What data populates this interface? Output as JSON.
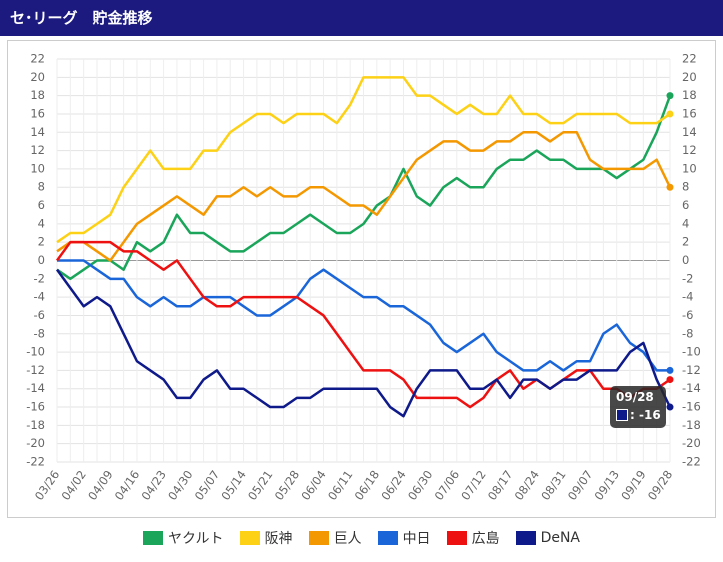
{
  "chart_data": {
    "type": "line",
    "title": "セ･リーグ　貯金推移",
    "categories": [
      "03/26",
      null,
      "04/02",
      null,
      "04/09",
      null,
      "04/16",
      null,
      "04/23",
      null,
      "04/30",
      null,
      "05/07",
      null,
      "05/14",
      null,
      "05/21",
      null,
      "05/28",
      null,
      "06/04",
      null,
      "06/11",
      null,
      "06/18",
      null,
      "06/24",
      null,
      "06/30",
      null,
      "07/06",
      null,
      "07/12",
      null,
      "08/17",
      null,
      "08/24",
      null,
      "08/31",
      null,
      "09/07",
      null,
      "09/13",
      null,
      "09/19",
      null,
      "09/28"
    ],
    "series": [
      {
        "name": "ヤクルト",
        "color": "#1aa55a",
        "values": [
          -1,
          -2,
          -1,
          0,
          0,
          -1,
          2,
          1,
          2,
          5,
          3,
          3,
          2,
          1,
          1,
          2,
          3,
          3,
          4,
          5,
          4,
          3,
          3,
          4,
          6,
          7,
          10,
          7,
          6,
          8,
          9,
          8,
          8,
          10,
          11,
          11,
          12,
          11,
          11,
          10,
          10,
          10,
          9,
          10,
          11,
          14,
          18
        ]
      },
      {
        "name": "阪神",
        "color": "#fcd116",
        "values": [
          2,
          3,
          3,
          4,
          5,
          8,
          10,
          12,
          10,
          10,
          10,
          12,
          12,
          14,
          15,
          16,
          16,
          15,
          16,
          16,
          16,
          15,
          17,
          20,
          20,
          20,
          20,
          18,
          18,
          17,
          16,
          17,
          16,
          16,
          18,
          16,
          16,
          15,
          15,
          16,
          16,
          16,
          16,
          15,
          15,
          15,
          16
        ]
      },
      {
        "name": "巨人",
        "color": "#f39800",
        "values": [
          1,
          2,
          2,
          1,
          0,
          2,
          4,
          5,
          6,
          7,
          6,
          5,
          7,
          7,
          8,
          7,
          8,
          7,
          7,
          8,
          8,
          7,
          6,
          6,
          5,
          7,
          9,
          11,
          12,
          13,
          13,
          12,
          12,
          13,
          13,
          14,
          14,
          13,
          14,
          14,
          11,
          10,
          10,
          10,
          10,
          11,
          8
        ]
      },
      {
        "name": "中日",
        "color": "#1a66d9",
        "values": [
          0,
          0,
          0,
          -1,
          -2,
          -2,
          -4,
          -5,
          -4,
          -5,
          -5,
          -4,
          -4,
          -4,
          -5,
          -6,
          -6,
          -5,
          -4,
          -2,
          -1,
          -2,
          -3,
          -4,
          -4,
          -5,
          -5,
          -6,
          -7,
          -9,
          -10,
          -9,
          -8,
          -10,
          -11,
          -12,
          -12,
          -11,
          -12,
          -11,
          -11,
          -8,
          -7,
          -9,
          -10,
          -12,
          -12
        ]
      },
      {
        "name": "広島",
        "color": "#ee1111",
        "values": [
          0,
          2,
          2,
          2,
          2,
          1,
          1,
          0,
          -1,
          0,
          -2,
          -4,
          -5,
          -5,
          -4,
          -4,
          -4,
          -4,
          -4,
          -5,
          -6,
          -8,
          -10,
          -12,
          -12,
          -12,
          -13,
          -15,
          -15,
          -15,
          -15,
          -16,
          -15,
          -13,
          -12,
          -14,
          -13,
          -14,
          -13,
          -12,
          -12,
          -14,
          -14,
          -15,
          -14,
          -14,
          -13
        ]
      },
      {
        "name": "DeNA",
        "color": "#0f1a8a",
        "values": [
          -1,
          -3,
          -5,
          -4,
          -5,
          -8,
          -11,
          -12,
          -13,
          -15,
          -15,
          -13,
          -12,
          -14,
          -14,
          -15,
          -16,
          -16,
          -15,
          -15,
          -14,
          -14,
          -14,
          -14,
          -14,
          -16,
          -17,
          -14,
          -12,
          -12,
          -12,
          -14,
          -14,
          -13,
          -15,
          -13,
          -13,
          -14,
          -13,
          -13,
          -12,
          -12,
          -12,
          -10,
          -9,
          -13,
          -16
        ]
      }
    ],
    "ylim": [
      -22,
      22
    ],
    "yticks": [
      -22,
      -20,
      -18,
      -16,
      -14,
      -12,
      -10,
      -8,
      -6,
      -4,
      -2,
      0,
      2,
      4,
      6,
      8,
      10,
      12,
      14,
      16,
      18,
      20,
      22
    ],
    "grid": true
  }
}
